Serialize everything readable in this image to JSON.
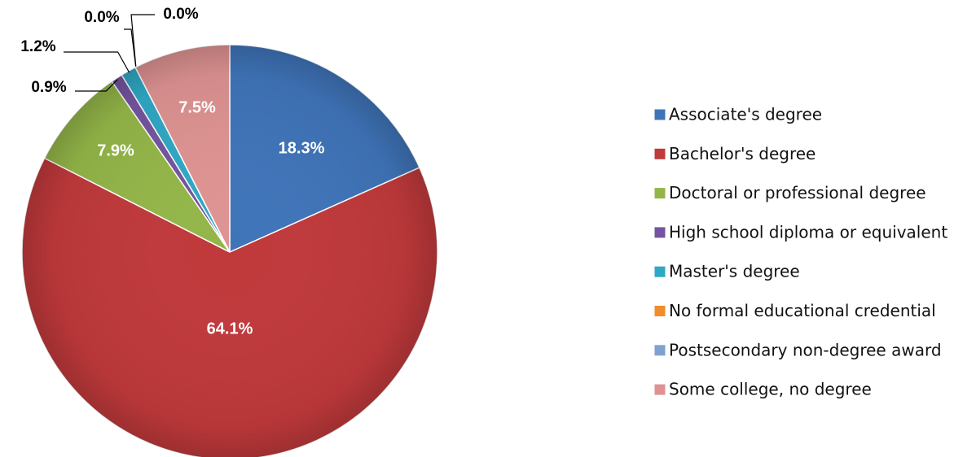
{
  "chart_data": {
    "type": "pie",
    "categories": [
      "Associate's degree",
      "Bachelor's degree",
      "Doctoral or professional degree",
      "High school diploma or equivalent",
      "Master's degree",
      "No formal educational credential",
      "Postsecondary non-degree award",
      "Some college, no degree"
    ],
    "values": [
      18.3,
      64.1,
      7.9,
      0.9,
      1.2,
      0.0,
      0.0,
      7.5
    ],
    "value_labels": [
      "18.3%",
      "64.1%",
      "7.9%",
      "0.9%",
      "1.2%",
      "0.0%",
      "0.0%",
      "7.5%"
    ],
    "colors": [
      "#3f74b9",
      "#c0393b",
      "#93b648",
      "#7454a0",
      "#2fa8c4",
      "#f08c2a",
      "#7fa2cf",
      "#de9392"
    ],
    "legend": "right"
  }
}
